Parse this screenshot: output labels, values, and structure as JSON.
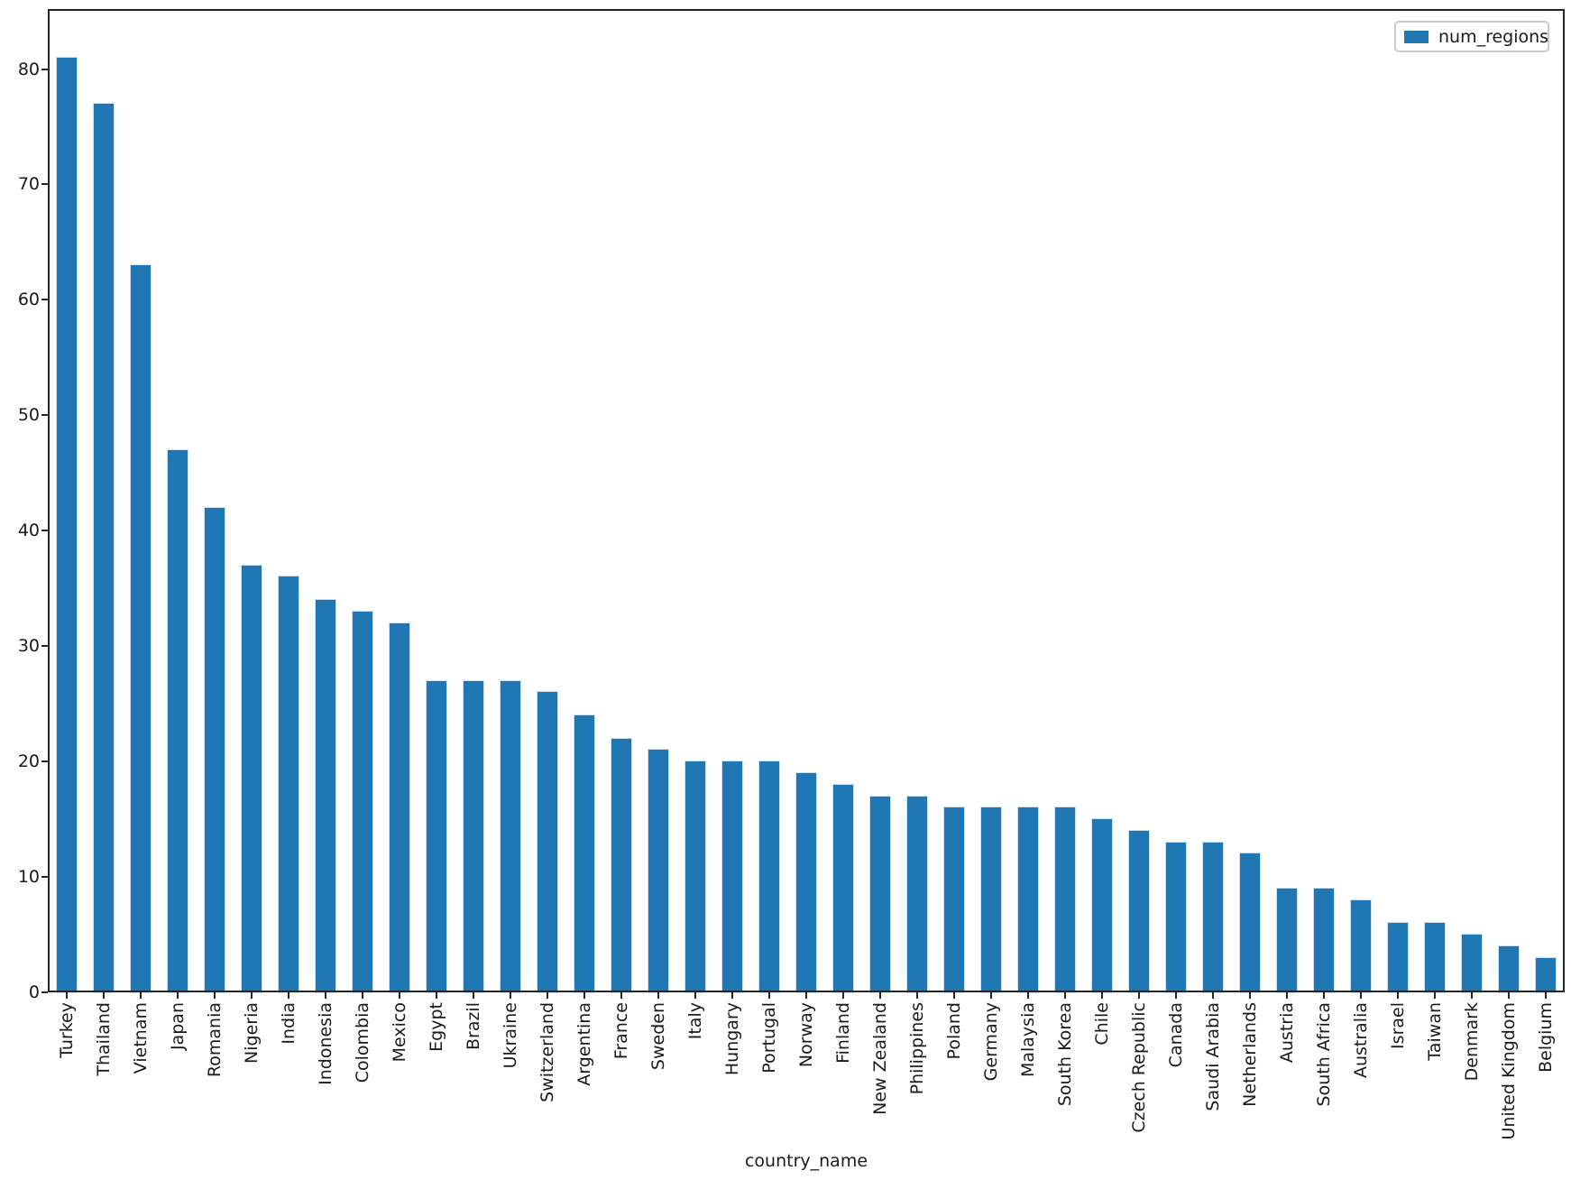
{
  "chart_data": {
    "type": "bar",
    "title": "",
    "xlabel": "country_name",
    "ylabel": "",
    "legend_entries": [
      "num_regions"
    ],
    "legend_position": "upper right",
    "grid": false,
    "bar_color": "#1f77b4",
    "axis_color": "#262626",
    "ylim": [
      0,
      85.2
    ],
    "yticks": [
      0,
      10,
      20,
      30,
      40,
      50,
      60,
      70,
      80
    ],
    "categories": [
      "Turkey",
      "Thailand",
      "Vietnam",
      "Japan",
      "Romania",
      "Nigeria",
      "India",
      "Indonesia",
      "Colombia",
      "Mexico",
      "Egypt",
      "Brazil",
      "Ukraine",
      "Switzerland",
      "Argentina",
      "France",
      "Sweden",
      "Italy",
      "Hungary",
      "Portugal",
      "Norway",
      "Finland",
      "New Zealand",
      "Philippines",
      "Poland",
      "Germany",
      "Malaysia",
      "South Korea",
      "Chile",
      "Czech Republic",
      "Canada",
      "Saudi Arabia",
      "Netherlands",
      "Austria",
      "South Africa",
      "Australia",
      "Israel",
      "Taiwan",
      "Denmark",
      "United Kingdom",
      "Belgium"
    ],
    "series": [
      {
        "name": "num_regions",
        "values": [
          81,
          77,
          63,
          47,
          42,
          37,
          36,
          34,
          33,
          32,
          27,
          27,
          27,
          26,
          24,
          22,
          21,
          20,
          20,
          20,
          19,
          18,
          17,
          17,
          16,
          16,
          16,
          16,
          15,
          14,
          13,
          13,
          12,
          9,
          9,
          8,
          6,
          6,
          5,
          4,
          3
        ]
      }
    ]
  }
}
